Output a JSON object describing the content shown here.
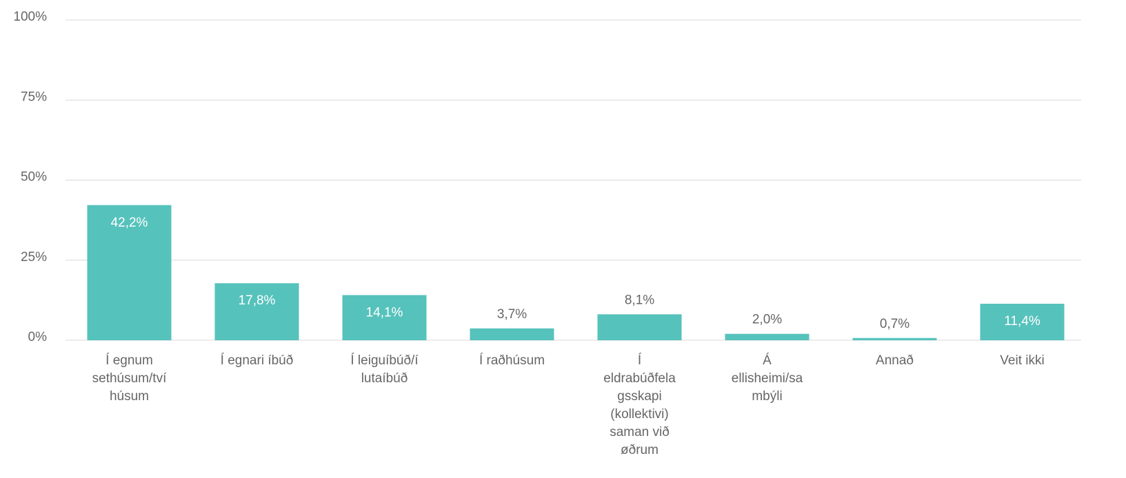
{
  "chart_data": {
    "type": "bar",
    "categories": [
      [
        "Í egnum",
        "sethúsum/tví",
        "húsum"
      ],
      [
        "Í egnari íbúð"
      ],
      [
        "Í leiguíbúð/í",
        "lutaíbúð"
      ],
      [
        "Í raðhúsum"
      ],
      [
        "Í",
        "eldrabúðfela",
        "gsskapi",
        "(kollektivi)",
        "saman við",
        "øðrum"
      ],
      [
        "Á",
        "ellisheimi/sa",
        "mbýli"
      ],
      [
        "Annað"
      ],
      [
        "Veit ikki"
      ]
    ],
    "values": [
      42.2,
      17.8,
      14.1,
      3.7,
      8.1,
      2.0,
      0.7,
      11.4
    ],
    "value_labels": [
      "42,2%",
      "17,8%",
      "14,1%",
      "3,7%",
      "8,1%",
      "2,0%",
      "0,7%",
      "11,4%"
    ],
    "color": "#56c2bc",
    "ylim": [
      0,
      100
    ],
    "yticks": [
      {
        "value": 0,
        "label": "0%"
      },
      {
        "value": 25,
        "label": "25%"
      },
      {
        "value": 50,
        "label": "50%"
      },
      {
        "value": 75,
        "label": "75%"
      },
      {
        "value": 100,
        "label": "100%"
      }
    ],
    "grid": true
  }
}
